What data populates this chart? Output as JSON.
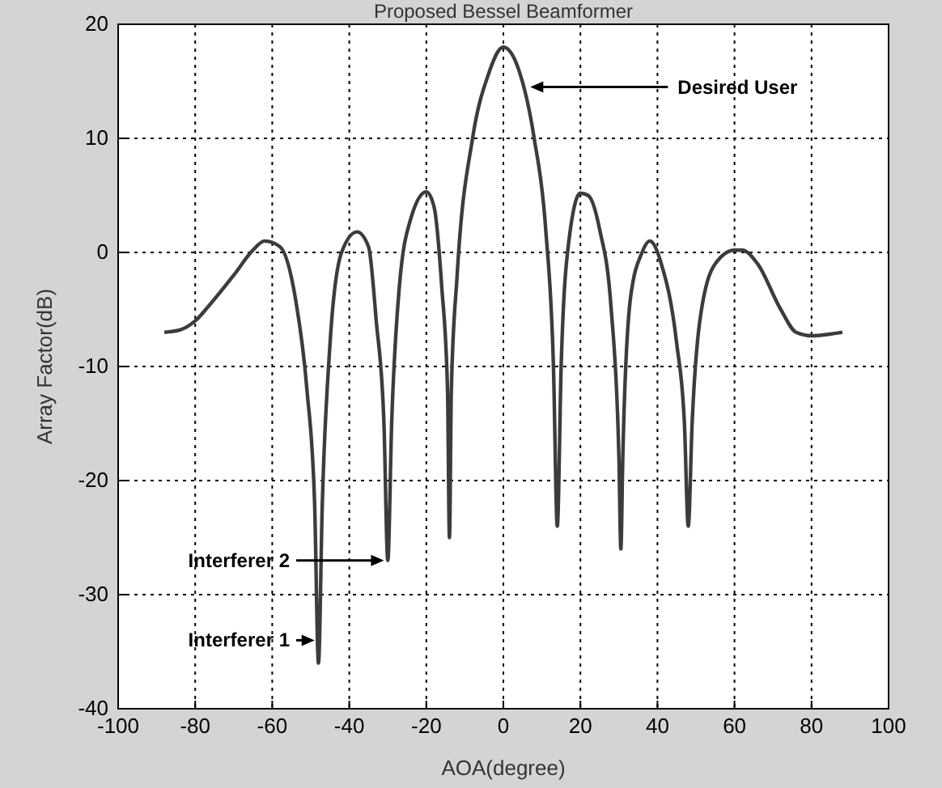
{
  "chart_data": {
    "type": "line",
    "title": "Proposed Bessel Beamformer",
    "xlabel": "AOA(degree)",
    "ylabel": "Array Factor(dB)",
    "xlim": [
      -100,
      100
    ],
    "xticks": [
      -100,
      -80,
      -60,
      -40,
      -20,
      0,
      20,
      40,
      60,
      80,
      100
    ],
    "ylim": [
      -40,
      20
    ],
    "yticks": [
      -40,
      -30,
      -20,
      -10,
      0,
      10,
      20
    ],
    "grid": true,
    "series": [
      {
        "color": "#3c3c3c",
        "x": [
          -88,
          -84,
          -80,
          -76,
          -70,
          -65,
          -62,
          -58,
          -54,
          -51,
          -49,
          -48,
          -47,
          -45,
          -42,
          -38,
          -35,
          -33,
          -31,
          -30,
          -29,
          -27,
          -24,
          -20,
          -18,
          -16,
          -14.5,
          -14,
          -13.5,
          -12,
          -8,
          -4,
          0,
          4,
          8,
          11,
          13,
          14,
          15,
          17,
          20,
          22,
          25,
          28,
          30,
          30.5,
          31,
          33,
          36,
          38,
          41,
          45,
          47,
          48,
          49,
          51,
          55,
          60,
          62,
          66,
          72,
          76,
          80,
          84,
          88
        ],
        "values": [
          -7,
          -6.8,
          -6,
          -4.5,
          -2,
          0.2,
          1,
          0.5,
          -4,
          -12,
          -22,
          -36,
          -22,
          -8,
          0,
          1.8,
          0.5,
          -6,
          -15,
          -27,
          -15,
          -3,
          3,
          5.3,
          4,
          -3,
          -12,
          -25,
          -12,
          -2,
          10,
          15.5,
          18,
          16,
          10,
          2,
          -10,
          -24,
          -10,
          1,
          5.2,
          5,
          2,
          -5,
          -18,
          -26,
          -18,
          -4,
          0,
          1,
          -1,
          -8,
          -15,
          -24,
          -15,
          -6,
          -1,
          0.2,
          0.2,
          -1,
          -5,
          -7,
          -7.3,
          -7.2,
          -7
        ]
      }
    ],
    "annotations": [
      {
        "text": "Desired User",
        "x": 7,
        "y": 14.5
      },
      {
        "text": "Interferer 2",
        "x": -31,
        "y": -27
      },
      {
        "text": "Interferer 1",
        "x": -49,
        "y": -34
      }
    ]
  }
}
